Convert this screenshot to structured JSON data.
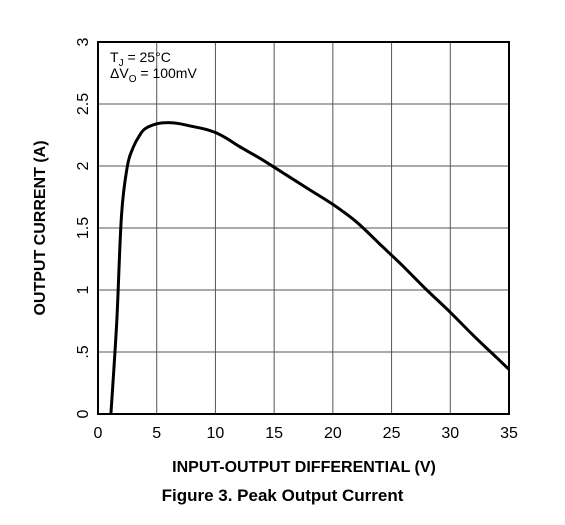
{
  "chart_data": {
    "type": "line",
    "xlabel": "INPUT-OUTPUT DIFFERENTIAL (V)",
    "ylabel": "OUTPUT CURRENT (A)",
    "xlim": [
      0,
      35
    ],
    "ylim": [
      0,
      3
    ],
    "x_ticks": [
      0,
      5,
      10,
      15,
      20,
      25,
      30,
      35
    ],
    "x_tick_labels": [
      "0",
      "5",
      "10",
      "15",
      "20",
      "25",
      "30",
      "35"
    ],
    "y_ticks": [
      0,
      0.5,
      1,
      1.5,
      2,
      2.5,
      3
    ],
    "y_tick_labels": [
      "0",
      ".5",
      "1",
      "1.5",
      "2",
      "2.5",
      "3"
    ],
    "grid": true,
    "annotations": [
      {
        "prefix": "T",
        "sub": "J",
        "suffix": " = 25°C"
      },
      {
        "prefix": "ΔV",
        "sub": "O",
        "suffix": " = 100mV"
      }
    ],
    "series": [
      {
        "x": [
          1.1,
          1.6,
          2.0,
          2.5,
          3.0,
          3.5,
          4.0,
          5.0,
          6.0,
          7.0,
          8.0,
          9.0,
          10.0,
          11.0,
          12.0,
          14.0,
          16.0,
          18.0,
          20.0,
          22.0,
          24.0,
          26.0,
          28.0,
          30.0,
          32.0,
          34.0,
          35.0
        ],
        "y": [
          0.0,
          0.75,
          1.6,
          2.0,
          2.15,
          2.24,
          2.3,
          2.34,
          2.35,
          2.34,
          2.32,
          2.3,
          2.27,
          2.22,
          2.16,
          2.05,
          1.93,
          1.81,
          1.69,
          1.55,
          1.37,
          1.19,
          1.0,
          0.82,
          0.63,
          0.45,
          0.36
        ]
      }
    ]
  },
  "caption": "Figure 3. Peak Output Current"
}
